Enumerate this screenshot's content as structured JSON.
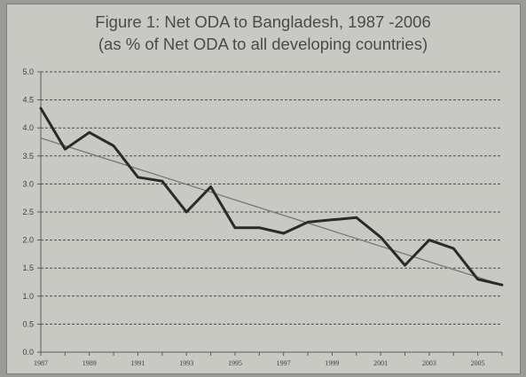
{
  "chart_data": {
    "type": "line",
    "title": "Figure 1: Net ODA to Bangladesh, 1987 -2006",
    "subtitle": "(as % of Net ODA to all developing countries)",
    "xlabel": "",
    "ylabel": "",
    "x": [
      1987,
      1988,
      1989,
      1990,
      1991,
      1992,
      1993,
      1994,
      1995,
      1996,
      1997,
      1998,
      1999,
      2000,
      2001,
      2002,
      2003,
      2004,
      2005,
      2006
    ],
    "series": [
      {
        "name": "",
        "values": [
          4.35,
          3.62,
          3.92,
          3.68,
          3.12,
          3.05,
          2.5,
          2.95,
          2.22,
          2.22,
          2.12,
          2.32,
          2.36,
          2.4,
          2.05,
          1.55,
          2.0,
          1.85,
          1.3,
          1.2
        ],
        "color": "#2a2a28"
      }
    ],
    "trendline": {
      "x": [
        1987,
        2006
      ],
      "y": [
        3.82,
        1.2
      ],
      "color": "#767673"
    },
    "y_ticks": [
      "0.0",
      "0.5",
      "1.0",
      "1.5",
      "2.0",
      "2.5",
      "3.0",
      "3.5",
      "4.0",
      "4.5",
      "5.0"
    ],
    "x_ticks": [
      "1987",
      "1989",
      "1991",
      "1993",
      "1995",
      "1997",
      "1999",
      "2001",
      "2003",
      "2005"
    ],
    "ylim": [
      0,
      5
    ],
    "xlim": [
      1987,
      2006
    ],
    "grid": "horizontal dashed",
    "legend": "none",
    "colors": {
      "background": "#c9c9c4",
      "gridline": "#4a4a48",
      "axis": "#5a5a58"
    }
  }
}
